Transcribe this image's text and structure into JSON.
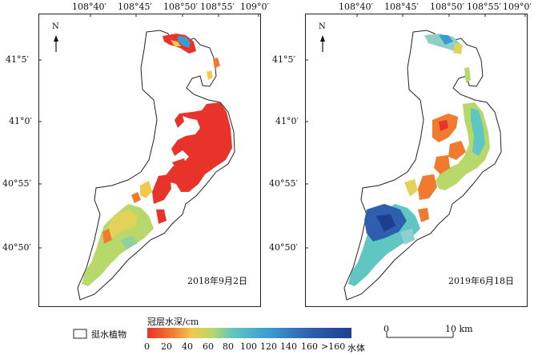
{
  "maps": [
    {
      "id": "left",
      "top_ticks": [
        "108°40′",
        "108°45′",
        "108°50′",
        "108°55′",
        "109°0′"
      ],
      "left_ticks": [
        "41°5′",
        "41°0′",
        "40°55′",
        "40°50′"
      ],
      "north_label": "N",
      "date": "2018年9月2日"
    },
    {
      "id": "right",
      "top_ticks": [
        "108°40′",
        "108°45′",
        "108°50′",
        "108°55′",
        "109°0′"
      ],
      "left_ticks": [
        "41°5′",
        "41°0′",
        "40°55′",
        "40°50′"
      ],
      "north_label": "N",
      "date": "2019年6月18日"
    }
  ],
  "legend": {
    "emergent_label": "挺水植物",
    "colorbar_title": "冠层水深/cm",
    "colorbar_ticks": [
      "0",
      "20",
      "40",
      "60",
      "80",
      "100",
      "120",
      "140",
      "160",
      ">160",
      "水体"
    ],
    "colors": [
      "#e8332a",
      "#f07a2e",
      "#f2c94c",
      "#b7d86b",
      "#60c6c2",
      "#3a9bd1",
      "#2e5fae",
      "#1d3f8f"
    ]
  },
  "scale_bar": {
    "ticks": [
      "0",
      "10 km"
    ]
  }
}
